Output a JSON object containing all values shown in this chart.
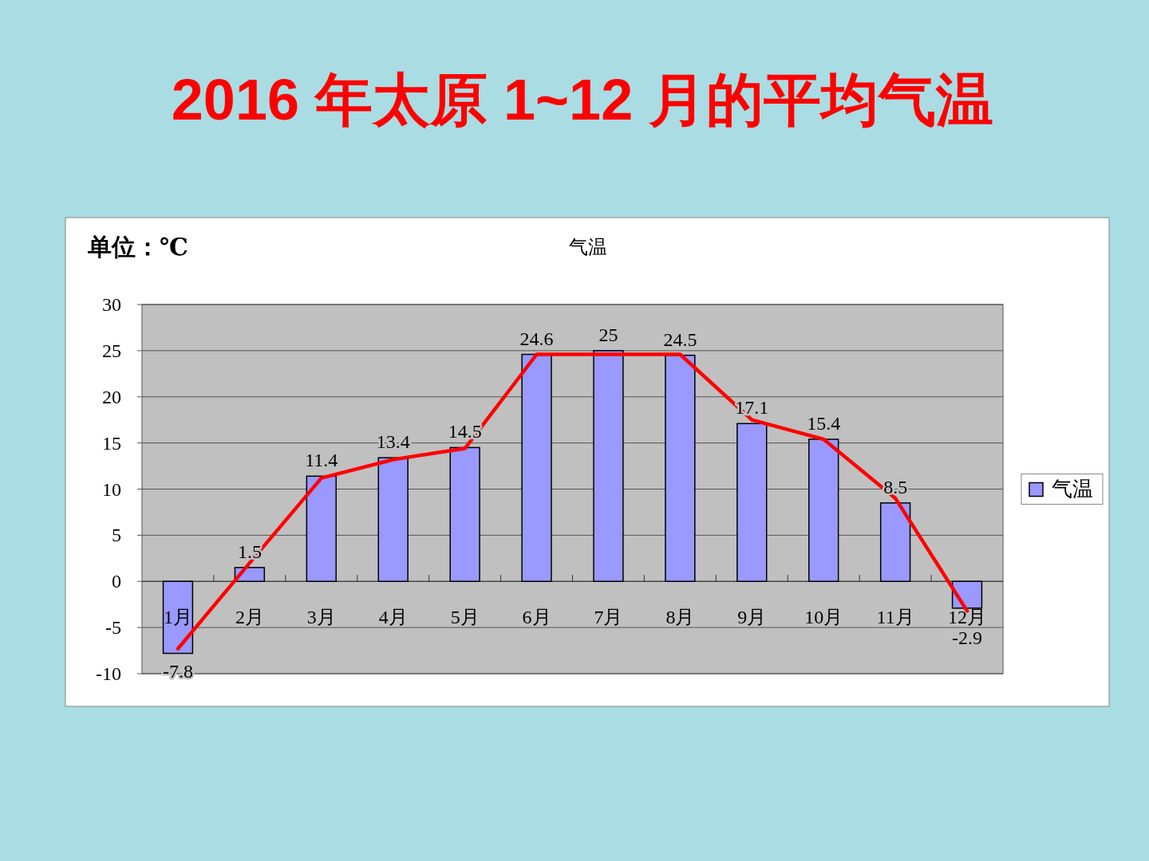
{
  "chart_data": {
    "type": "bar",
    "title": "2016 年太原 1~12 月的平均气温",
    "subtitle": "气温",
    "annotations": [
      "单位：℃"
    ],
    "categories": [
      "1月",
      "2月",
      "3月",
      "4月",
      "5月",
      "6月",
      "7月",
      "8月",
      "9月",
      "10月",
      "11月",
      "12月"
    ],
    "series": [
      {
        "name": "气温",
        "color": "#9999ff",
        "values": [
          -7.8,
          1.5,
          11.4,
          13.4,
          14.5,
          24.6,
          25,
          24.5,
          17.1,
          15.4,
          8.5,
          -2.9
        ],
        "value_labels": [
          "-7.8",
          "1.5",
          "11.4",
          "13.4",
          "14.5",
          "24.6",
          "25",
          "24.5",
          "17.1",
          "15.4",
          "8.5",
          "-2.9"
        ]
      },
      {
        "type": "line",
        "color": "#ff0000",
        "values": [
          -7.3,
          2,
          11.2,
          13.2,
          14.4,
          24.6,
          24.6,
          24.6,
          17.5,
          15.4,
          9,
          -3.2
        ]
      }
    ],
    "ylim": [
      -10,
      30
    ],
    "yticks": [
      -10,
      -5,
      0,
      5,
      10,
      15,
      20,
      25,
      30
    ],
    "grid": "y",
    "legend": "right"
  }
}
